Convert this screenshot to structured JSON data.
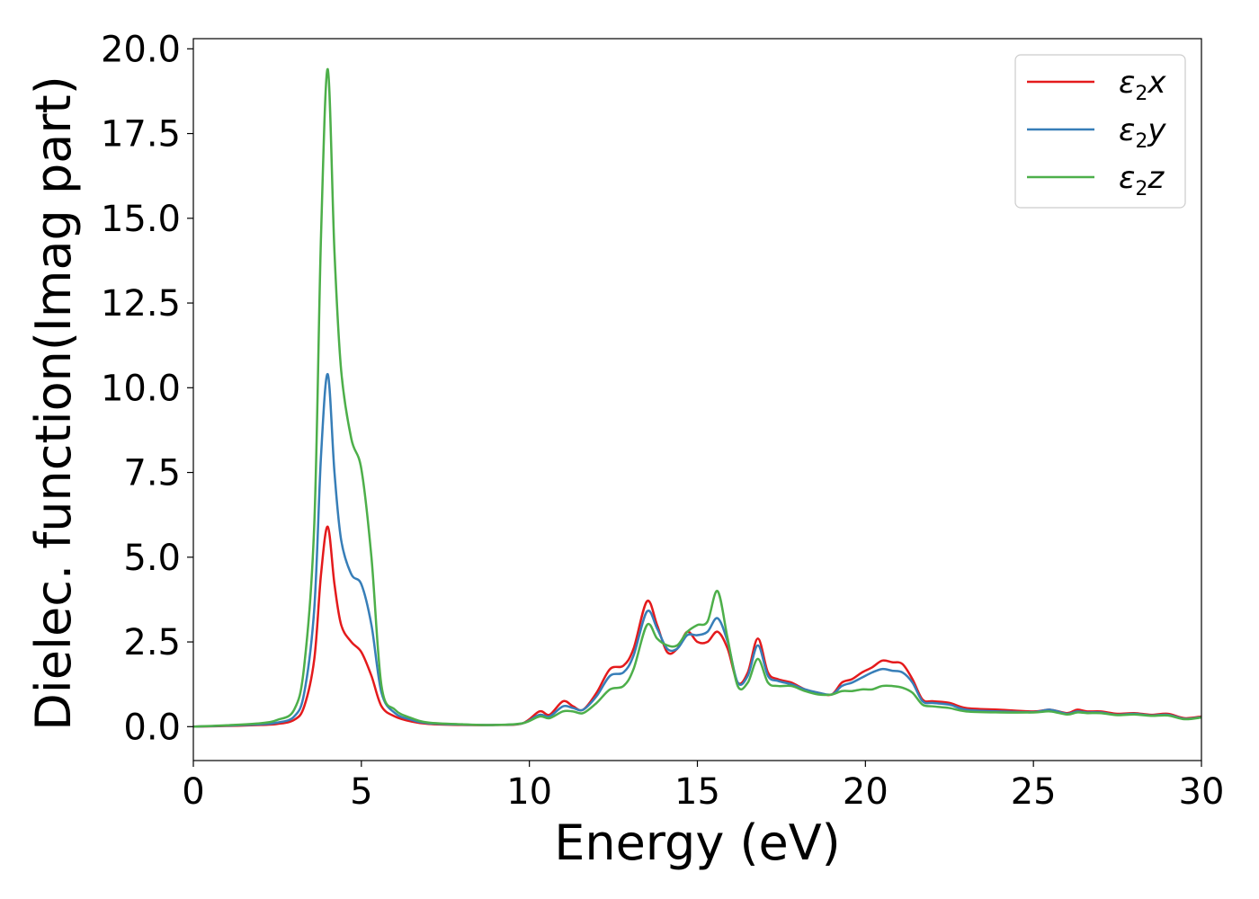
{
  "chart_data": {
    "type": "line",
    "title": "",
    "xlabel": "Energy (eV)",
    "ylabel": "Dielec. function(Imag part)",
    "xlim": [
      0,
      30
    ],
    "ylim": [
      -1,
      20.3
    ],
    "xticks": [
      0,
      5,
      10,
      15,
      20,
      25,
      30
    ],
    "xtick_labels": [
      "0",
      "5",
      "10",
      "15",
      "20",
      "25",
      "30"
    ],
    "yticks": [
      0,
      2.5,
      5,
      7.5,
      10,
      12.5,
      15,
      17.5,
      20
    ],
    "ytick_labels": [
      "0.0",
      "2.5",
      "5.0",
      "7.5",
      "10.0",
      "12.5",
      "15.0",
      "17.5",
      "20.0"
    ],
    "grid": false,
    "legend_position": "top-right",
    "x": [
      0,
      1,
      2,
      2.5,
      3,
      3.3,
      3.6,
      3.8,
      4.0,
      4.2,
      4.4,
      4.7,
      5.0,
      5.3,
      5.6,
      6.0,
      6.5,
      7.0,
      8.0,
      9.0,
      9.8,
      10.3,
      10.6,
      11.0,
      11.3,
      11.6,
      12.0,
      12.4,
      12.8,
      13.1,
      13.5,
      13.8,
      14.1,
      14.4,
      14.7,
      15.0,
      15.3,
      15.6,
      15.9,
      16.2,
      16.5,
      16.8,
      17.1,
      17.4,
      17.8,
      18.2,
      18.6,
      19.0,
      19.3,
      19.6,
      19.9,
      20.2,
      20.5,
      20.8,
      21.1,
      21.4,
      21.7,
      22.0,
      22.5,
      23.0,
      24.0,
      25.0,
      25.5,
      26.0,
      26.3,
      26.6,
      27.0,
      27.5,
      28.0,
      28.5,
      29.0,
      29.5,
      30.0
    ],
    "series": [
      {
        "name": "ε2x",
        "color": "#e41a1c",
        "values": [
          0,
          0.02,
          0.05,
          0.08,
          0.2,
          0.6,
          2.0,
          4.5,
          5.9,
          4.2,
          3.0,
          2.5,
          2.2,
          1.5,
          0.6,
          0.3,
          0.15,
          0.08,
          0.05,
          0.05,
          0.1,
          0.45,
          0.35,
          0.75,
          0.6,
          0.5,
          1.0,
          1.7,
          1.8,
          2.3,
          3.7,
          3.0,
          2.2,
          2.3,
          2.8,
          2.5,
          2.5,
          2.8,
          2.3,
          1.3,
          1.6,
          2.6,
          1.6,
          1.4,
          1.3,
          1.1,
          1.0,
          0.95,
          1.3,
          1.4,
          1.6,
          1.75,
          1.95,
          1.9,
          1.85,
          1.4,
          0.8,
          0.75,
          0.7,
          0.55,
          0.5,
          0.45,
          0.5,
          0.4,
          0.5,
          0.45,
          0.45,
          0.38,
          0.4,
          0.35,
          0.38,
          0.25,
          0.3
        ]
      },
      {
        "name": "ε2y",
        "color": "#377eb8",
        "values": [
          0,
          0.03,
          0.07,
          0.12,
          0.3,
          1.0,
          3.5,
          8.0,
          10.4,
          7.5,
          5.5,
          4.5,
          4.2,
          3.0,
          1.0,
          0.4,
          0.2,
          0.1,
          0.06,
          0.05,
          0.1,
          0.35,
          0.3,
          0.6,
          0.55,
          0.5,
          0.9,
          1.5,
          1.6,
          2.1,
          3.4,
          2.9,
          2.3,
          2.3,
          2.7,
          2.7,
          2.8,
          3.2,
          2.5,
          1.3,
          1.5,
          2.4,
          1.5,
          1.35,
          1.25,
          1.1,
          1.0,
          0.95,
          1.2,
          1.3,
          1.45,
          1.6,
          1.7,
          1.65,
          1.6,
          1.3,
          0.75,
          0.7,
          0.65,
          0.5,
          0.45,
          0.43,
          0.5,
          0.38,
          0.45,
          0.42,
          0.42,
          0.35,
          0.38,
          0.33,
          0.35,
          0.23,
          0.28
        ]
      },
      {
        "name": "ε2z",
        "color": "#4daf4a",
        "values": [
          0,
          0.04,
          0.1,
          0.2,
          0.5,
          1.8,
          6.0,
          14.5,
          19.4,
          14.0,
          10.5,
          8.5,
          7.6,
          5.0,
          1.2,
          0.5,
          0.25,
          0.12,
          0.07,
          0.05,
          0.1,
          0.3,
          0.25,
          0.45,
          0.45,
          0.4,
          0.7,
          1.1,
          1.2,
          1.7,
          3.0,
          2.6,
          2.4,
          2.4,
          2.8,
          3.0,
          3.1,
          4.0,
          2.6,
          1.2,
          1.3,
          2.0,
          1.3,
          1.2,
          1.2,
          1.05,
          0.95,
          0.95,
          1.05,
          1.05,
          1.1,
          1.1,
          1.2,
          1.2,
          1.15,
          1.0,
          0.65,
          0.6,
          0.55,
          0.45,
          0.42,
          0.42,
          0.45,
          0.36,
          0.42,
          0.4,
          0.4,
          0.34,
          0.36,
          0.32,
          0.33,
          0.22,
          0.27
        ]
      }
    ]
  }
}
